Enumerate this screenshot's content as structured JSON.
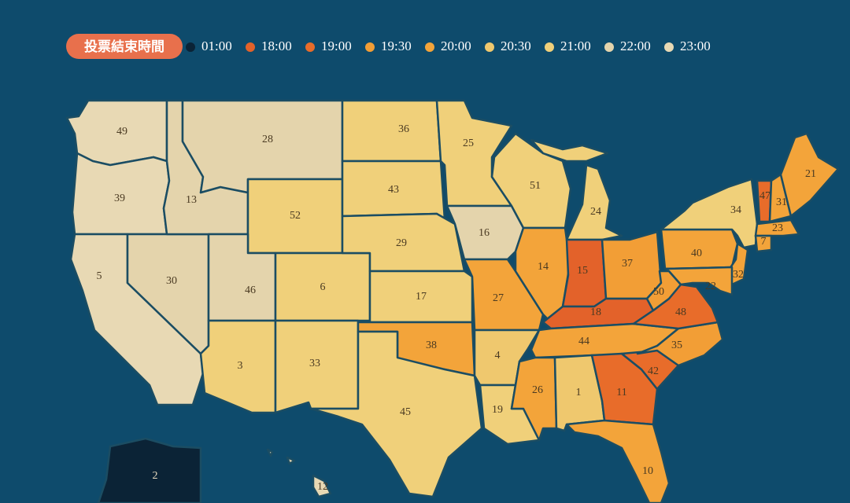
{
  "legend": {
    "title": "投票結束時間",
    "items": [
      {
        "label": "01:00",
        "color": "#0b2336"
      },
      {
        "label": "18:00",
        "color": "#e3622a"
      },
      {
        "label": "19:00",
        "color": "#e86c2a"
      },
      {
        "label": "19:30",
        "color": "#f29e36"
      },
      {
        "label": "20:00",
        "color": "#f3a43a"
      },
      {
        "label": "20:30",
        "color": "#efc86e"
      },
      {
        "label": "21:00",
        "color": "#f0d07a"
      },
      {
        "label": "22:00",
        "color": "#e4d4ac"
      },
      {
        "label": "23:00",
        "color": "#e8d9b4"
      }
    ]
  },
  "states": [
    {
      "label": "49",
      "time": "23:00"
    },
    {
      "label": "39",
      "time": "23:00"
    },
    {
      "label": "5",
      "time": "23:00"
    },
    {
      "label": "30",
      "time": "22:00"
    },
    {
      "label": "13",
      "time": "22:00"
    },
    {
      "label": "28",
      "time": "22:00"
    },
    {
      "label": "52",
      "time": "21:00"
    },
    {
      "label": "46",
      "time": "22:00"
    },
    {
      "label": "6",
      "time": "21:00"
    },
    {
      "label": "3",
      "time": "21:00"
    },
    {
      "label": "33",
      "time": "21:00"
    },
    {
      "label": "36",
      "time": "21:00"
    },
    {
      "label": "43",
      "time": "21:00"
    },
    {
      "label": "29",
      "time": "21:00"
    },
    {
      "label": "17",
      "time": "21:00"
    },
    {
      "label": "38",
      "time": "20:00"
    },
    {
      "label": "45",
      "time": "21:00"
    },
    {
      "label": "25",
      "time": "21:00"
    },
    {
      "label": "16",
      "time": "22:00"
    },
    {
      "label": "27",
      "time": "20:00"
    },
    {
      "label": "4",
      "time": "20:30"
    },
    {
      "label": "19",
      "time": "21:00"
    },
    {
      "label": "51",
      "time": "21:00"
    },
    {
      "label": "24",
      "time": "21:00"
    },
    {
      "label": "14",
      "time": "20:00"
    },
    {
      "label": "15",
      "time": "18:00"
    },
    {
      "label": "37",
      "time": "19:30"
    },
    {
      "label": "18",
      "time": "18:00"
    },
    {
      "label": "44",
      "time": "20:00"
    },
    {
      "label": "26",
      "time": "20:00"
    },
    {
      "label": "1",
      "time": "20:30"
    },
    {
      "label": "11",
      "time": "19:00"
    },
    {
      "label": "10",
      "time": "20:00"
    },
    {
      "label": "42",
      "time": "19:00"
    },
    {
      "label": "35",
      "time": "19:30"
    },
    {
      "label": "48",
      "time": "19:00"
    },
    {
      "label": "50",
      "time": "19:30"
    },
    {
      "label": "40",
      "time": "20:00"
    },
    {
      "label": "34",
      "time": "21:00"
    },
    {
      "label": "32",
      "time": "20:00"
    },
    {
      "label": "22",
      "time": "20:00"
    },
    {
      "label": "47",
      "time": "19:00"
    },
    {
      "label": "31",
      "time": "20:00"
    },
    {
      "label": "21",
      "time": "20:00"
    },
    {
      "label": "23",
      "time": "20:00"
    },
    {
      "label": "7",
      "time": "20:00"
    },
    {
      "label": "2",
      "time": "01:00"
    },
    {
      "label": "12",
      "time": "23:00"
    }
  ]
}
